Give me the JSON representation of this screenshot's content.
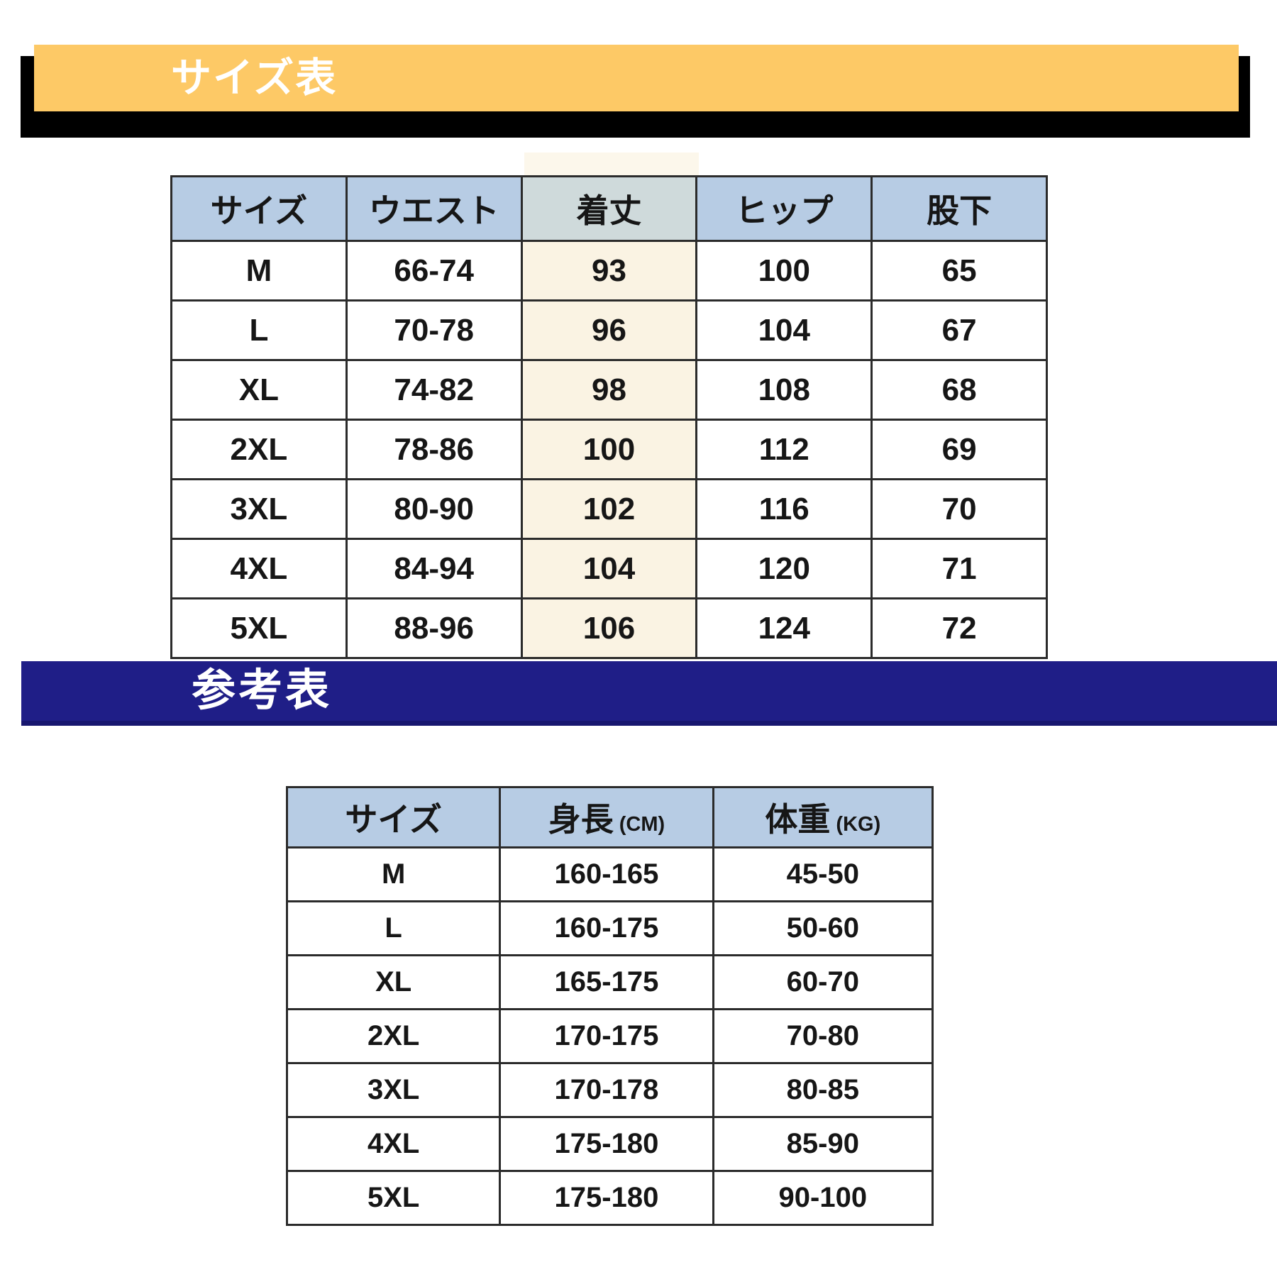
{
  "banners": {
    "size_chart": {
      "title": "サイズ表",
      "bg_color": "#FDC966",
      "shadow_color": "#000000",
      "text_color": "#ffffff"
    },
    "reference": {
      "title": "参考表",
      "bg_color": "#1F1E87",
      "text_color": "#ffffff"
    }
  },
  "size_table": {
    "highlight_column": 2,
    "highlight_color": "#FAF3E3",
    "header_color": "#B7CCE4",
    "headers": [
      "サイズ",
      "ウエスト",
      "着丈",
      "ヒップ",
      "股下"
    ],
    "rows": [
      [
        "M",
        "66-74",
        "93",
        "100",
        "65"
      ],
      [
        "L",
        "70-78",
        "96",
        "104",
        "67"
      ],
      [
        "XL",
        "74-82",
        "98",
        "108",
        "68"
      ],
      [
        "2XL",
        "78-86",
        "100",
        "112",
        "69"
      ],
      [
        "3XL",
        "80-90",
        "102",
        "116",
        "70"
      ],
      [
        "4XL",
        "84-94",
        "104",
        "120",
        "71"
      ],
      [
        "5XL",
        "88-96",
        "106",
        "124",
        "72"
      ]
    ]
  },
  "reference_table": {
    "header_color": "#B7CCE4",
    "headers": [
      {
        "label": "サイズ",
        "unit": ""
      },
      {
        "label": "身長",
        "unit": "(CM)"
      },
      {
        "label": "体重",
        "unit": "(KG)"
      }
    ],
    "rows": [
      [
        "M",
        "160-165",
        "45-50"
      ],
      [
        "L",
        "160-175",
        "50-60"
      ],
      [
        "XL",
        "165-175",
        "60-70"
      ],
      [
        "2XL",
        "170-175",
        "70-80"
      ],
      [
        "3XL",
        "170-178",
        "80-85"
      ],
      [
        "4XL",
        "175-180",
        "85-90"
      ],
      [
        "5XL",
        "175-180",
        "90-100"
      ]
    ]
  }
}
